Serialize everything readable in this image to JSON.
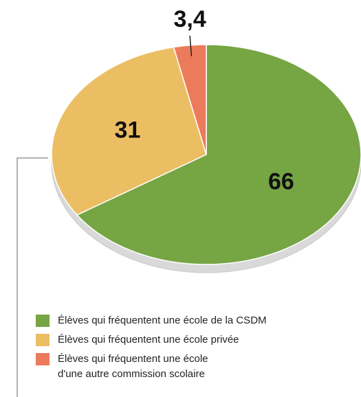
{
  "chart_data": {
    "type": "pie",
    "categories": [
      "Élèves qui fréquentent une école de la CSDM",
      "Élèves qui fréquentent une école privée",
      "Élèves qui fréquentent une école d'une autre commission scolaire"
    ],
    "values": [
      66,
      31,
      3.4
    ],
    "value_labels": [
      "66",
      "31",
      "3,4"
    ],
    "colors": [
      "#76a544",
      "#ecbe63",
      "#ec7b5b"
    ]
  }
}
